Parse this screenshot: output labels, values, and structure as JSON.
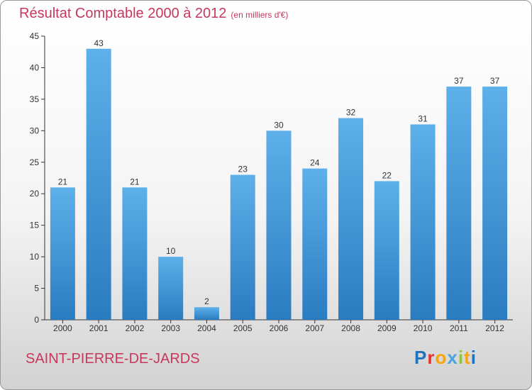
{
  "header": {
    "title": "Résultat Comptable 2000 à 2012",
    "unit": "(en milliers d'€)"
  },
  "footer": {
    "commune": "SAINT-PIERRE-DE-JARDS",
    "logo": "Proxiti",
    "logo_colors": [
      "#1e73be",
      "#e8312f",
      "#f7a70c",
      "#4aa3df",
      "#8cc63f",
      "#f7a70c",
      "#1e73be"
    ]
  },
  "colors": {
    "title": "#c8375d",
    "bar_top": "#5eb0ea",
    "bar_bottom": "#2a7cc0",
    "axis": "#333333",
    "grid": "#c8c8c8"
  },
  "chart_data": {
    "type": "bar",
    "title": "Résultat Comptable 2000 à 2012",
    "subtitle": "(en milliers d'€)",
    "xlabel": "",
    "ylabel": "",
    "categories": [
      "2000",
      "2001",
      "2002",
      "2003",
      "2004",
      "2005",
      "2006",
      "2007",
      "2008",
      "2009",
      "2010",
      "2011",
      "2012"
    ],
    "values": [
      21,
      43,
      21,
      10,
      2,
      23,
      30,
      24,
      32,
      22,
      31,
      37,
      37
    ],
    "ylim": [
      0,
      45
    ],
    "yticks": [
      0,
      5,
      10,
      15,
      20,
      25,
      30,
      35,
      40,
      45
    ],
    "grid": false,
    "legend": "none",
    "data_labels": true
  }
}
